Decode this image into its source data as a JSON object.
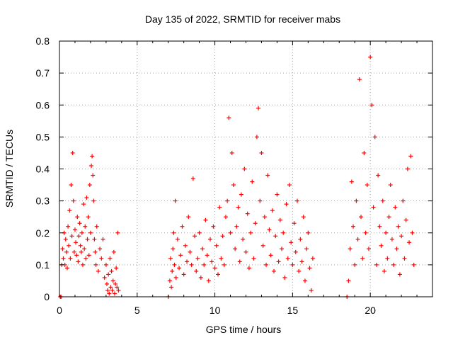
{
  "chart_data": {
    "type": "scatter",
    "title": "Day 135 of 2022, SRMTID for receiver mabs",
    "xlabel": "GPS time / hours",
    "ylabel": "SRMTID / TECUs",
    "xlim": [
      0,
      24
    ],
    "ylim": [
      0,
      0.8
    ],
    "xticks": [
      0,
      5,
      10,
      15,
      20
    ],
    "xtick_labels": [
      "0",
      "5",
      "10",
      "15",
      "20"
    ],
    "yticks": [
      0,
      0.1,
      0.2,
      0.3,
      0.4,
      0.5,
      0.6,
      0.7,
      0.8
    ],
    "ytick_labels": [
      "0",
      "0.1",
      "0.2",
      "0.3",
      "0.4",
      "0.5",
      "0.6",
      "0.7",
      "0.8"
    ],
    "grid": true,
    "marker": "plus",
    "color": "#ff0000",
    "series": [
      {
        "name": "SRMTID",
        "points": [
          [
            0.05,
            0.0
          ],
          [
            0.1,
            0.0
          ],
          [
            0.15,
            0.1
          ],
          [
            0.2,
            0.15
          ],
          [
            0.25,
            0.12
          ],
          [
            0.3,
            0.2
          ],
          [
            0.35,
            0.1
          ],
          [
            0.4,
            0.18
          ],
          [
            0.45,
            0.14
          ],
          [
            0.5,
            0.09
          ],
          [
            0.55,
            0.22
          ],
          [
            0.6,
            0.16
          ],
          [
            0.65,
            0.27
          ],
          [
            0.7,
            0.12
          ],
          [
            0.75,
            0.35
          ],
          [
            0.8,
            0.19
          ],
          [
            0.85,
            0.45
          ],
          [
            0.9,
            0.3
          ],
          [
            0.95,
            0.14
          ],
          [
            1.0,
            0.21
          ],
          [
            1.05,
            0.17
          ],
          [
            1.1,
            0.13
          ],
          [
            1.15,
            0.25
          ],
          [
            1.2,
            0.11
          ],
          [
            1.25,
            0.19
          ],
          [
            1.3,
            0.23
          ],
          [
            1.35,
            0.16
          ],
          [
            1.4,
            0.14
          ],
          [
            1.45,
            0.2
          ],
          [
            1.5,
            0.1
          ],
          [
            1.55,
            0.29
          ],
          [
            1.6,
            0.15
          ],
          [
            1.65,
            0.22
          ],
          [
            1.7,
            0.12
          ],
          [
            1.75,
            0.31
          ],
          [
            1.8,
            0.18
          ],
          [
            1.85,
            0.25
          ],
          [
            1.9,
            0.13
          ],
          [
            1.95,
            0.35
          ],
          [
            2.0,
            0.2
          ],
          [
            2.05,
            0.41
          ],
          [
            2.1,
            0.44
          ],
          [
            2.15,
            0.38
          ],
          [
            2.2,
            0.3
          ],
          [
            2.25,
            0.18
          ],
          [
            2.3,
            0.14
          ],
          [
            2.35,
            0.1
          ],
          [
            2.4,
            0.22
          ],
          [
            2.5,
            0.08
          ],
          [
            2.6,
            0.15
          ],
          [
            2.7,
            0.12
          ],
          [
            2.8,
            0.18
          ],
          [
            2.9,
            0.06
          ],
          [
            3.0,
            0.1
          ],
          [
            3.05,
            0.04
          ],
          [
            3.1,
            0.02
          ],
          [
            3.15,
            0.07
          ],
          [
            3.2,
            0.01
          ],
          [
            3.25,
            0.12
          ],
          [
            3.3,
            0.03
          ],
          [
            3.35,
            0.08
          ],
          [
            3.4,
            0.02
          ],
          [
            3.45,
            0.05
          ],
          [
            3.5,
            0.14
          ],
          [
            3.55,
            0.01
          ],
          [
            3.6,
            0.04
          ],
          [
            3.65,
            0.09
          ],
          [
            3.7,
            0.03
          ],
          [
            3.75,
            0.2
          ],
          [
            3.8,
            0.02
          ],
          [
            7.0,
            0.0
          ],
          [
            7.1,
            0.05
          ],
          [
            7.15,
            0.12
          ],
          [
            7.2,
            0.03
          ],
          [
            7.25,
            0.08
          ],
          [
            7.3,
            0.15
          ],
          [
            7.35,
            0.2
          ],
          [
            7.4,
            0.1
          ],
          [
            7.45,
            0.3
          ],
          [
            7.5,
            0.06
          ],
          [
            7.6,
            0.18
          ],
          [
            7.7,
            0.09
          ],
          [
            7.8,
            0.13
          ],
          [
            7.9,
            0.22
          ],
          [
            8.0,
            0.07
          ],
          [
            8.1,
            0.16
          ],
          [
            8.2,
            0.11
          ],
          [
            8.3,
            0.25
          ],
          [
            8.4,
            0.14
          ],
          [
            8.5,
            0.1
          ],
          [
            8.6,
            0.37
          ],
          [
            8.7,
            0.19
          ],
          [
            8.8,
            0.08
          ],
          [
            8.9,
            0.12
          ],
          [
            9.0,
            0.2
          ],
          [
            9.1,
            0.06
          ],
          [
            9.2,
            0.15
          ],
          [
            9.3,
            0.1
          ],
          [
            9.4,
            0.24
          ],
          [
            9.5,
            0.13
          ],
          [
            9.6,
            0.05
          ],
          [
            9.7,
            0.18
          ],
          [
            9.8,
            0.11
          ],
          [
            9.9,
            0.22
          ],
          [
            10.0,
            0.09
          ],
          [
            10.1,
            0.16
          ],
          [
            10.2,
            0.07
          ],
          [
            10.3,
            0.28
          ],
          [
            10.4,
            0.12
          ],
          [
            10.5,
            0.19
          ],
          [
            10.6,
            0.1
          ],
          [
            10.7,
            0.25
          ],
          [
            10.8,
            0.3
          ],
          [
            10.9,
            0.56
          ],
          [
            11.0,
            0.2
          ],
          [
            11.1,
            0.45
          ],
          [
            11.2,
            0.35
          ],
          [
            11.3,
            0.15
          ],
          [
            11.4,
            0.22
          ],
          [
            11.5,
            0.28
          ],
          [
            11.6,
            0.11
          ],
          [
            11.7,
            0.32
          ],
          [
            11.8,
            0.18
          ],
          [
            11.9,
            0.4
          ],
          [
            12.0,
            0.14
          ],
          [
            12.1,
            0.26
          ],
          [
            12.2,
            0.09
          ],
          [
            12.3,
            0.2
          ],
          [
            12.4,
            0.36
          ],
          [
            12.5,
            0.12
          ],
          [
            12.6,
            0.23
          ],
          [
            12.7,
            0.5
          ],
          [
            12.8,
            0.59
          ],
          [
            12.9,
            0.3
          ],
          [
            13.0,
            0.45
          ],
          [
            13.1,
            0.16
          ],
          [
            13.2,
            0.25
          ],
          [
            13.3,
            0.1
          ],
          [
            13.4,
            0.38
          ],
          [
            13.5,
            0.21
          ],
          [
            13.6,
            0.13
          ],
          [
            13.7,
            0.27
          ],
          [
            13.8,
            0.08
          ],
          [
            13.9,
            0.19
          ],
          [
            14.0,
            0.32
          ],
          [
            14.1,
            0.11
          ],
          [
            14.2,
            0.24
          ],
          [
            14.3,
            0.15
          ],
          [
            14.4,
            0.2
          ],
          [
            14.5,
            0.06
          ],
          [
            14.6,
            0.29
          ],
          [
            14.7,
            0.12
          ],
          [
            14.8,
            0.35
          ],
          [
            14.9,
            0.17
          ],
          [
            15.0,
            0.1
          ],
          [
            15.1,
            0.23
          ],
          [
            15.2,
            0.14
          ],
          [
            15.3,
            0.3
          ],
          [
            15.4,
            0.08
          ],
          [
            15.5,
            0.18
          ],
          [
            15.6,
            0.11
          ],
          [
            15.7,
            0.25
          ],
          [
            15.8,
            0.05
          ],
          [
            15.9,
            0.15
          ],
          [
            16.0,
            0.2
          ],
          [
            16.1,
            0.09
          ],
          [
            16.2,
            0.02
          ],
          [
            16.3,
            0.12
          ],
          [
            18.5,
            0.0
          ],
          [
            18.6,
            0.05
          ],
          [
            18.7,
            0.15
          ],
          [
            18.8,
            0.36
          ],
          [
            18.9,
            0.22
          ],
          [
            19.0,
            0.1
          ],
          [
            19.1,
            0.3
          ],
          [
            19.2,
            0.18
          ],
          [
            19.3,
            0.68
          ],
          [
            19.4,
            0.25
          ],
          [
            19.5,
            0.12
          ],
          [
            19.6,
            0.45
          ],
          [
            19.7,
            0.2
          ],
          [
            19.8,
            0.35
          ],
          [
            19.9,
            0.15
          ],
          [
            20.0,
            0.75
          ],
          [
            20.1,
            0.6
          ],
          [
            20.2,
            0.28
          ],
          [
            20.3,
            0.5
          ],
          [
            20.4,
            0.1
          ],
          [
            20.5,
            0.38
          ],
          [
            20.6,
            0.22
          ],
          [
            20.7,
            0.16
          ],
          [
            20.8,
            0.3
          ],
          [
            20.9,
            0.08
          ],
          [
            21.0,
            0.2
          ],
          [
            21.1,
            0.12
          ],
          [
            21.2,
            0.25
          ],
          [
            21.3,
            0.35
          ],
          [
            21.4,
            0.18
          ],
          [
            21.5,
            0.1
          ],
          [
            21.6,
            0.28
          ],
          [
            21.7,
            0.15
          ],
          [
            21.8,
            0.22
          ],
          [
            21.9,
            0.07
          ],
          [
            22.0,
            0.19
          ],
          [
            22.1,
            0.3
          ],
          [
            22.2,
            0.12
          ],
          [
            22.3,
            0.24
          ],
          [
            22.4,
            0.4
          ],
          [
            22.5,
            0.17
          ],
          [
            22.6,
            0.44
          ],
          [
            22.7,
            0.2
          ],
          [
            22.8,
            0.1
          ]
        ]
      }
    ]
  }
}
